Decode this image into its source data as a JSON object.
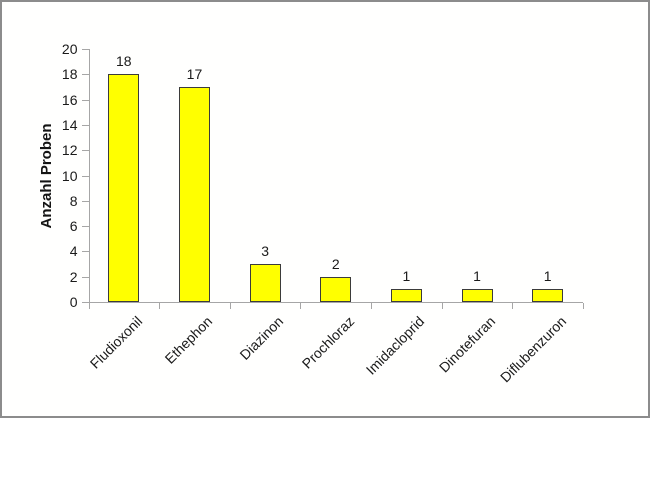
{
  "chart_data": {
    "type": "bar",
    "title": "",
    "ylabel": "Anzahl Proben",
    "xlabel": "",
    "categories": [
      "Fludioxonil",
      "Ethephon",
      "Diazinon",
      "Prochloraz",
      "Imidacloprid",
      "Dinotefuran",
      "Diflubenzuron"
    ],
    "values": [
      18,
      17,
      3,
      2,
      1,
      1,
      1
    ],
    "ylim": [
      0,
      20
    ],
    "ytick_step": 2,
    "yticks": [
      0,
      2,
      4,
      6,
      8,
      10,
      12,
      14,
      16,
      18,
      20
    ],
    "grid": false,
    "legend": "none",
    "bar_label_position": "above",
    "category_label_rotation_deg": -45,
    "colors": {
      "bar_fill": "#FFFF00",
      "bar_border": "#3B3B3B",
      "axis": "#A6A6A6",
      "text": "#1A1A1A",
      "background": "#FFFFFE",
      "frame_border": "#8C8C8C"
    }
  }
}
